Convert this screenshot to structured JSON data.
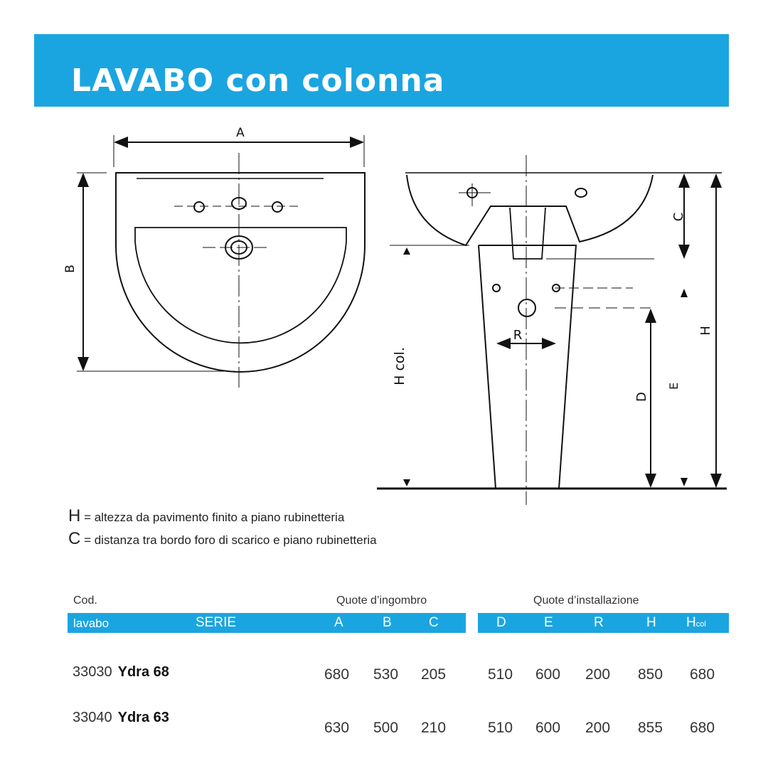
{
  "title": "LAVABO con colonna",
  "diagram_labels": {
    "A": "A",
    "B": "B",
    "C": "C",
    "H": "H",
    "R": "R",
    "D": "D",
    "E": "E",
    "Hcol": "H col."
  },
  "legend": [
    {
      "key": "H",
      "text": " = altezza da pavimento finito a piano rubinetteria"
    },
    {
      "key": "C",
      "text": " = distanza tra bordo foro di scarico e piano rubinetteria"
    }
  ],
  "table": {
    "top_labels": {
      "cod": "Cod.",
      "ingombro": "Quote d’ingombro",
      "installazione": "Quote d’installazione"
    },
    "columns": {
      "lavabo": "lavabo",
      "serie": "SERIE",
      "A": "A",
      "B": "B",
      "C": "C",
      "D": "D",
      "E": "E",
      "R": "R",
      "H": "H",
      "Hcol_main": "H",
      "Hcol_sub": "col"
    },
    "rows": [
      {
        "code": "33030",
        "serie": "Ydra 68",
        "A": "680",
        "B": "530",
        "C": "205",
        "D": "510",
        "E": "600",
        "R": "200",
        "H": "850",
        "Hcol": "680"
      },
      {
        "code": "33040",
        "serie": "Ydra 63",
        "A": "630",
        "B": "500",
        "C": "210",
        "D": "510",
        "E": "600",
        "R": "200",
        "H": "855",
        "Hcol": "680"
      }
    ]
  },
  "colors": {
    "accent": "#1ba5e0"
  }
}
